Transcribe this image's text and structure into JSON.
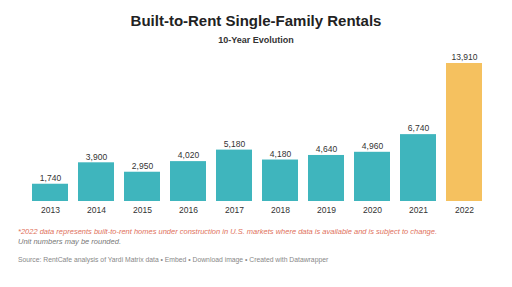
{
  "chart_data": {
    "type": "bar",
    "title": "Built-to-Rent Single-Family Rentals",
    "subtitle": "10-Year Evolution",
    "categories": [
      "2013",
      "2014",
      "2015",
      "2016",
      "2017",
      "2018",
      "2019",
      "2020",
      "2021",
      "2022"
    ],
    "values": [
      1740,
      3900,
      2950,
      4020,
      5180,
      4180,
      4640,
      4960,
      6740,
      13910
    ],
    "value_labels": [
      "1,740",
      "3,900",
      "2,950",
      "4,020",
      "5,180",
      "4,180",
      "4,640",
      "4,960",
      "6,740",
      "13,910"
    ],
    "colors": [
      "#3fb5bd",
      "#3fb5bd",
      "#3fb5bd",
      "#3fb5bd",
      "#3fb5bd",
      "#3fb5bd",
      "#3fb5bd",
      "#3fb5bd",
      "#3fb5bd",
      "#f5c15f"
    ],
    "data_labels": true,
    "tick_labels": "x",
    "grid": false,
    "notes": [
      "*2022 data represents built-to-rent homes under construction in U.S. markets where data is available and is subject to change.",
      "Unit numbers may be rounded."
    ],
    "source": "Source: RentCafe analysis of Yardi Matrix data • Embed • Download image • Created with Datawrapper"
  }
}
